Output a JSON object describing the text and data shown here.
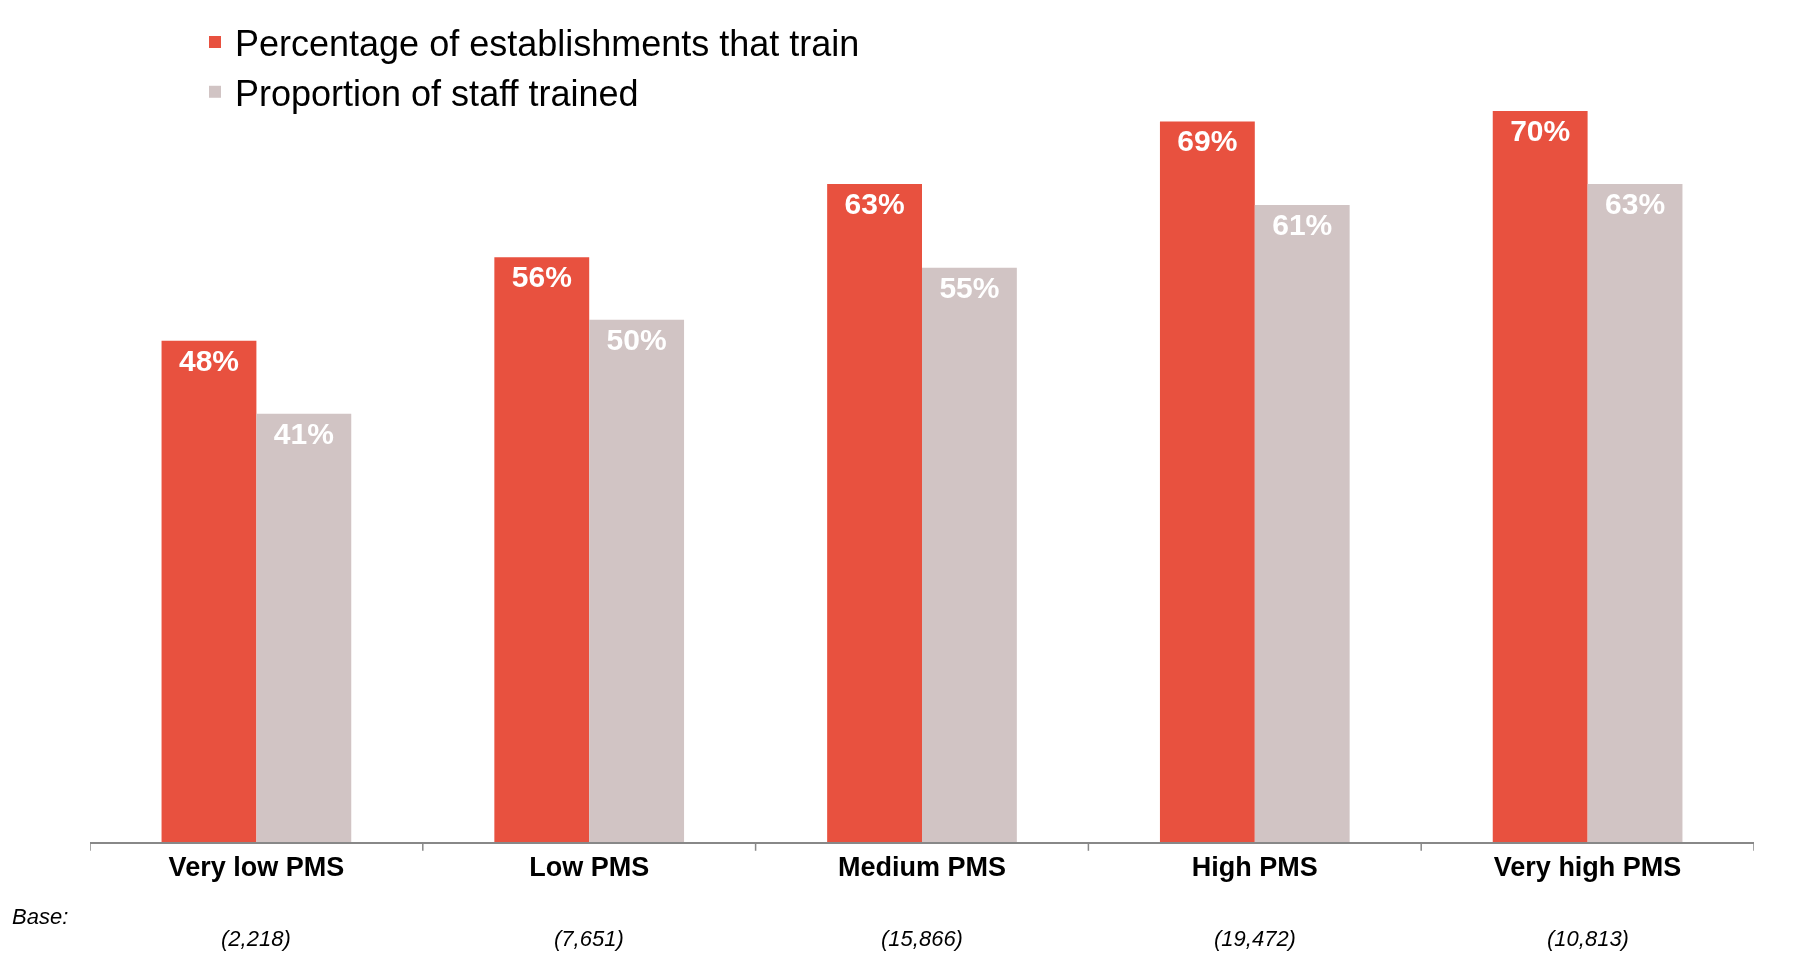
{
  "chart_data": {
    "type": "bar",
    "categories": [
      "Very low PMS",
      "Low PMS",
      "Medium PMS",
      "High PMS",
      "Very high PMS"
    ],
    "series": [
      {
        "name": "Percentage of establishments that train",
        "color": "#e8513f",
        "values": [
          48,
          56,
          63,
          69,
          70
        ],
        "value_labels": [
          "48%",
          "56%",
          "63%",
          "69%",
          "70%"
        ]
      },
      {
        "name": "Proportion of staff trained",
        "color": "#d1c4c4",
        "values": [
          41,
          50,
          55,
          61,
          63
        ],
        "value_labels": [
          "41%",
          "50%",
          "55%",
          "61%",
          "63%"
        ]
      }
    ],
    "ylim": [
      0,
      70
    ],
    "tick_labels": "x",
    "legend": "top left",
    "annotations": [
      "Base:",
      "(2,218)",
      "(7,651)",
      "(15,866)",
      "(19,472)",
      "(10,813)"
    ]
  }
}
